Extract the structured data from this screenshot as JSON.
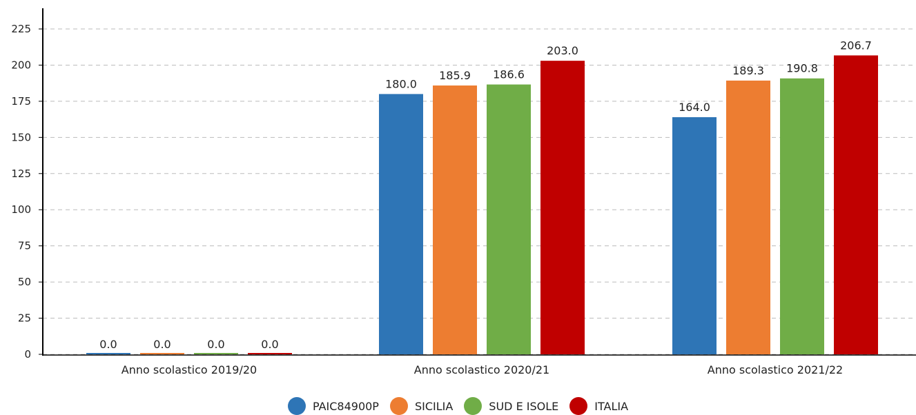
{
  "chart_data": {
    "type": "bar",
    "categories": [
      "Anno scolastico 2019/20",
      "Anno scolastico 2020/21",
      "Anno scolastico 2021/22"
    ],
    "series": [
      {
        "name": "PAIC84900P",
        "color": "#2e75b6",
        "values": [
          0.0,
          180.0,
          164.0
        ]
      },
      {
        "name": "SICILIA",
        "color": "#ed7d31",
        "values": [
          0.0,
          185.9,
          189.3
        ]
      },
      {
        "name": "SUD E ISOLE",
        "color": "#70ad47",
        "values": [
          0.0,
          186.6,
          190.8
        ]
      },
      {
        "name": "ITALIA",
        "color": "#c00000",
        "values": [
          0.0,
          203.0,
          206.7
        ]
      }
    ],
    "ylim": [
      0,
      225
    ],
    "yticks": [
      0,
      25,
      50,
      75,
      100,
      125,
      150,
      175,
      200,
      225
    ],
    "grid": true,
    "legend_position": "bottom-center",
    "value_format_decimals": 1
  }
}
